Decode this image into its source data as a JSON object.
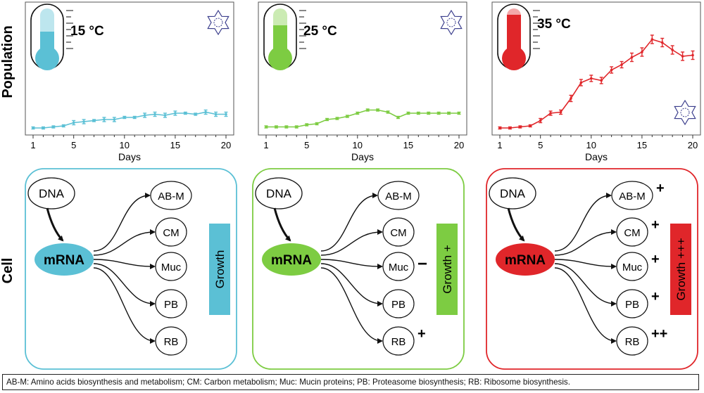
{
  "y_axis_top_label": "Population",
  "y_axis_bottom_label": "Cell",
  "footnote": "AB-M: Amino acids biosynthesis and metabolism; CM: Carbon metabolism; Muc: Mucin proteins; PB: Proteasome biosynthesis; RB: Ribosome biosynthesis.",
  "panels": [
    {
      "temperature": "15 °C",
      "color": "#5bc0d5",
      "fill_level": 0.45,
      "growth_label": "Growth",
      "growth_mark": "",
      "gene_marks": {
        "AB-M": "",
        "CM": "",
        "Muc": "",
        "PB": "",
        "RB": ""
      },
      "cell_icon_position": "top-right"
    },
    {
      "temperature": "25 °C",
      "color": "#7dcc42",
      "fill_level": 0.6,
      "growth_label": "Growth",
      "growth_mark": "+",
      "gene_marks": {
        "AB-M": "",
        "CM": "",
        "Muc": "−",
        "PB": "",
        "RB": "+"
      },
      "cell_icon_position": "top-right"
    },
    {
      "temperature": "35 °C",
      "color": "#e0262a",
      "fill_level": 0.85,
      "growth_label": "Growth",
      "growth_mark": "+++",
      "gene_marks": {
        "AB-M": "+",
        "CM": "+",
        "Muc": "+",
        "PB": "+",
        "RB": "++"
      },
      "cell_icon_position": "bottom-right"
    }
  ],
  "diagram": {
    "source": "DNA",
    "transcript": "mRNA",
    "targets": [
      "AB-M",
      "CM",
      "Muc",
      "PB",
      "RB"
    ]
  },
  "chart_data": [
    {
      "type": "line",
      "title": "15 °C",
      "xlabel": "Days",
      "ylabel": "Population",
      "xticks": [
        1,
        5,
        10,
        15,
        20
      ],
      "ylim": [
        0,
        100
      ],
      "x": [
        1,
        2,
        3,
        4,
        5,
        6,
        7,
        8,
        9,
        10,
        11,
        12,
        13,
        14,
        15,
        16,
        17,
        18,
        19,
        20
      ],
      "y": [
        2,
        2,
        3,
        4,
        7,
        8,
        9,
        10,
        10,
        12,
        12,
        14,
        15,
        14,
        16,
        16,
        15,
        17,
        15,
        15
      ],
      "error": [
        1,
        1,
        1,
        1,
        2,
        2,
        1,
        2,
        2,
        1,
        1,
        2,
        2,
        2,
        2,
        1,
        1,
        2,
        2,
        2
      ]
    },
    {
      "type": "line",
      "title": "25 °C",
      "xlabel": "Days",
      "ylabel": "Population",
      "xticks": [
        1,
        5,
        10,
        15,
        20
      ],
      "ylim": [
        0,
        100
      ],
      "x": [
        1,
        2,
        3,
        4,
        5,
        6,
        7,
        8,
        9,
        10,
        11,
        12,
        13,
        14,
        15,
        16,
        17,
        18,
        19,
        20
      ],
      "y": [
        3,
        3,
        3,
        3,
        5,
        6,
        10,
        11,
        13,
        16,
        19,
        19,
        17,
        12,
        16,
        16,
        16,
        16,
        16,
        16
      ],
      "error": [
        1,
        1,
        1,
        1,
        1,
        1,
        1,
        1,
        1,
        1,
        1,
        1,
        1,
        1,
        1,
        1,
        1,
        1,
        1,
        1
      ]
    },
    {
      "type": "line",
      "title": "35 °C",
      "xlabel": "Days",
      "ylabel": "Population",
      "xticks": [
        1,
        5,
        10,
        15,
        20
      ],
      "ylim": [
        0,
        100
      ],
      "x": [
        1,
        2,
        3,
        4,
        5,
        6,
        7,
        8,
        9,
        10,
        11,
        12,
        13,
        14,
        15,
        16,
        17,
        18,
        19,
        20
      ],
      "y": [
        2,
        2,
        3,
        4,
        9,
        16,
        17,
        30,
        45,
        49,
        47,
        57,
        62,
        69,
        74,
        86,
        83,
        76,
        70,
        71
      ],
      "error": [
        1,
        1,
        1,
        1,
        2,
        2,
        2,
        3,
        3,
        3,
        3,
        3,
        3,
        4,
        4,
        4,
        4,
        4,
        4,
        4
      ]
    }
  ]
}
